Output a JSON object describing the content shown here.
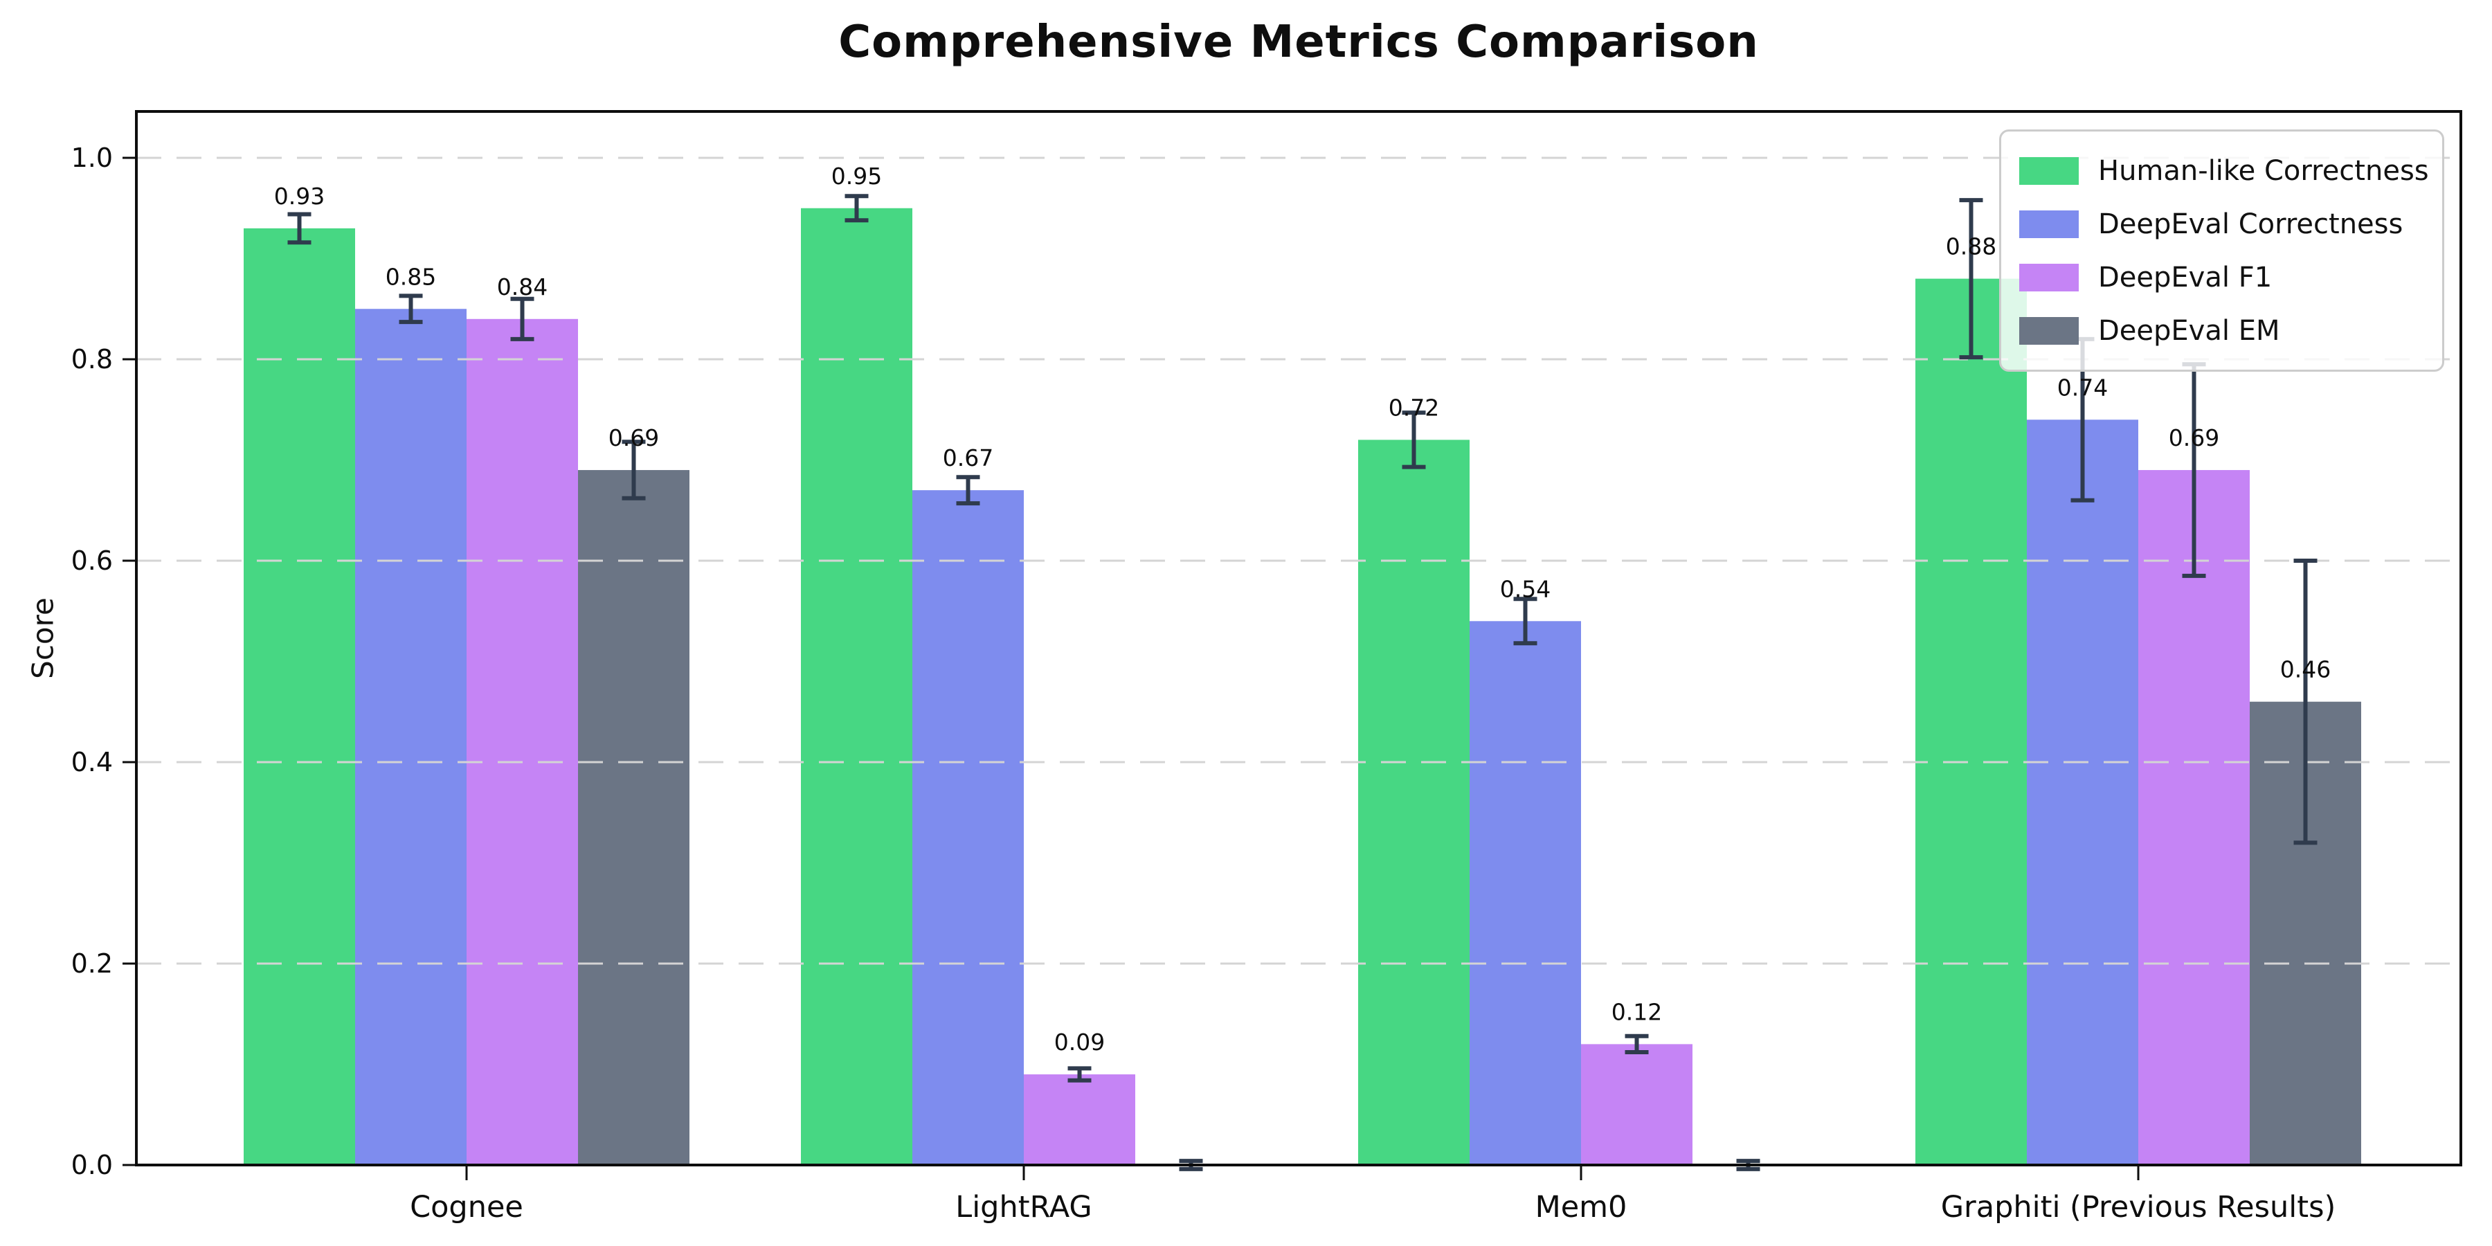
{
  "chart_data": {
    "type": "bar",
    "title": "Comprehensive Metrics Comparison",
    "ylabel": "Score",
    "xlabel": "",
    "categories": [
      "Cognee",
      "LightRAG",
      "Mem0",
      "Graphiti (Previous Results)"
    ],
    "series": [
      {
        "name": "Human-like Correctness",
        "color": "#47d783",
        "values": [
          0.93,
          0.95,
          0.72,
          0.88
        ],
        "errors": [
          0.014,
          0.012,
          0.027,
          0.078
        ],
        "labels": [
          "0.93",
          "0.95",
          "0.72",
          "0.88"
        ]
      },
      {
        "name": "DeepEval Correctness",
        "color": "#7e8cee",
        "values": [
          0.85,
          0.67,
          0.54,
          0.74
        ],
        "errors": [
          0.013,
          0.013,
          0.022,
          0.08
        ],
        "labels": [
          "0.85",
          "0.67",
          "0.54",
          "0.74"
        ]
      },
      {
        "name": "DeepEval F1",
        "color": "#c584f5",
        "values": [
          0.84,
          0.09,
          0.12,
          0.69
        ],
        "errors": [
          0.02,
          0.006,
          0.008,
          0.105
        ],
        "labels": [
          "0.84",
          "0.09",
          "0.12",
          "0.69"
        ]
      },
      {
        "name": "DeepEval EM",
        "color": "#6b7585",
        "values": [
          0.69,
          0.0,
          0.0,
          0.46
        ],
        "errors": [
          0.028,
          0.004,
          0.004,
          0.14
        ],
        "labels": [
          "0.69",
          "",
          "",
          "0.46"
        ]
      }
    ],
    "yticks": [
      "0.0",
      "0.2",
      "0.4",
      "0.6",
      "0.8",
      "1.0"
    ],
    "ylim": [
      0.0,
      1.05
    ],
    "grid": "horizontal-dashed",
    "grid_color": "#d4d4d4",
    "legend_position": "upper-right",
    "errorbar_color": "#2f3b4d",
    "axis_color": "#0d0d0d"
  }
}
